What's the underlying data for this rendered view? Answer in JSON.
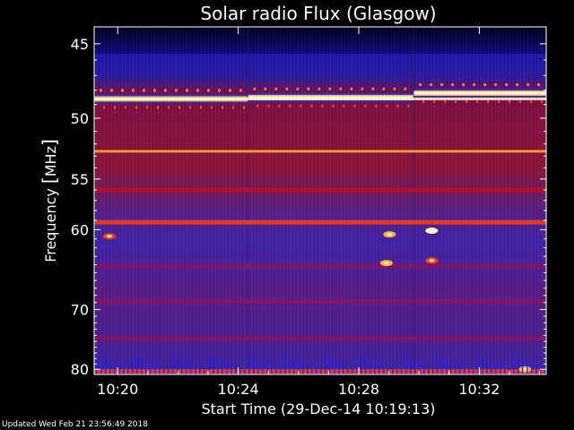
{
  "chart_data": {
    "type": "heatmap",
    "title": "Solar radio Flux (Glasgow)",
    "xlabel": "Start Time (29-Dec-14 10:19:13)",
    "ylabel_text": "Frequency ",
    "ylabel_unit": "MHz",
    "x_ticks": [
      "10:20",
      "10:24",
      "10:28",
      "10:32"
    ],
    "x_tick_minutes": [
      0.78,
      4.78,
      8.78,
      12.78
    ],
    "xlim_minutes": [
      0,
      15
    ],
    "y_ticks": [
      45,
      50,
      55,
      60,
      70,
      80
    ],
    "ylim": [
      44,
      81
    ],
    "y_scale": "reciprocal",
    "colormap": [
      "#000010",
      "#0a0a80",
      "#2020d0",
      "#5028a0",
      "#8a1060",
      "#c01020",
      "#ff4010",
      "#ffb040",
      "#ffffd0"
    ],
    "segments": [
      {
        "start": 0,
        "end": 5.1,
        "band_freq": 48.6
      },
      {
        "start": 5.1,
        "end": 10.6,
        "band_freq": 48.5
      },
      {
        "start": 10.6,
        "end": 15,
        "band_freq": 48.2
      }
    ],
    "features": [
      {
        "type": "band",
        "freq": 48.6,
        "level": 1.0
      },
      {
        "type": "band",
        "freq": 52.6,
        "level": 0.85
      },
      {
        "type": "band",
        "freq": 56.0,
        "level": 0.6
      },
      {
        "type": "band",
        "freq": 59.2,
        "level": 0.7
      },
      {
        "type": "band",
        "freq": 64.2,
        "level": 0.45
      },
      {
        "type": "band",
        "freq": 68.8,
        "level": 0.5
      },
      {
        "type": "band",
        "freq": 74.5,
        "level": 0.5
      },
      {
        "type": "band",
        "freq": 80.4,
        "level": 0.8
      },
      {
        "type": "burst",
        "minute": 9.8,
        "freq": 60.5,
        "level": 0.9
      },
      {
        "type": "burst",
        "minute": 11.2,
        "freq": 60.1,
        "level": 0.95
      },
      {
        "type": "burst",
        "minute": 9.7,
        "freq": 63.8,
        "level": 0.85
      },
      {
        "type": "burst",
        "minute": 11.2,
        "freq": 63.5,
        "level": 0.8
      },
      {
        "type": "burst",
        "minute": 0.5,
        "freq": 60.7,
        "level": 0.7
      },
      {
        "type": "burst",
        "minute": 14.3,
        "freq": 80.0,
        "level": 0.9
      }
    ]
  },
  "footer": {
    "updated": "Updated Wed Feb 21 23:56:49 2018"
  }
}
